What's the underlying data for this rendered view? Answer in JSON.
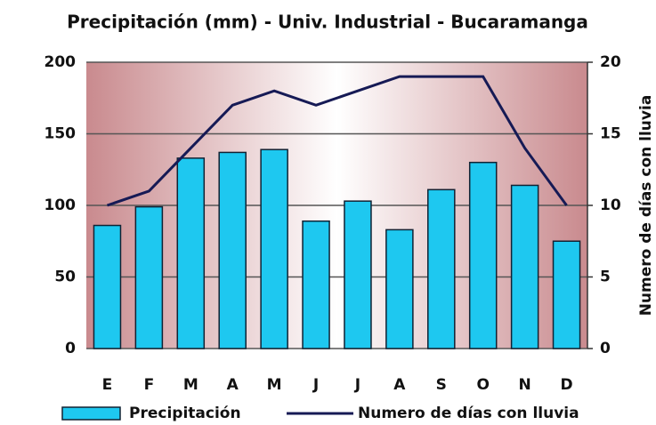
{
  "chart_data": {
    "type": "bar",
    "title": "Precipitación (mm) - Univ. Industrial - Bucaramanga",
    "y2label": "Numero de días con lluvia",
    "categories": [
      "E",
      "F",
      "M",
      "A",
      "M",
      "J",
      "J",
      "A",
      "S",
      "O",
      "N",
      "D"
    ],
    "series": [
      {
        "name": "Precipitación",
        "color": "#1ec8f0",
        "values": [
          86,
          99,
          133,
          137,
          139,
          89,
          103,
          83,
          111,
          130,
          114,
          75
        ]
      },
      {
        "name": "Numero de días con lluvia",
        "color": "#161a55",
        "axis": "y2",
        "values": [
          10,
          11,
          14,
          17,
          18,
          17,
          18,
          19,
          19,
          19,
          14,
          10
        ]
      }
    ],
    "ylim": [
      0,
      200
    ],
    "yticks": [
      0,
      50,
      100,
      150,
      200
    ],
    "y2lim": [
      0,
      20
    ],
    "y2ticks": [
      0,
      5,
      10,
      15,
      20
    ],
    "grid": true
  }
}
